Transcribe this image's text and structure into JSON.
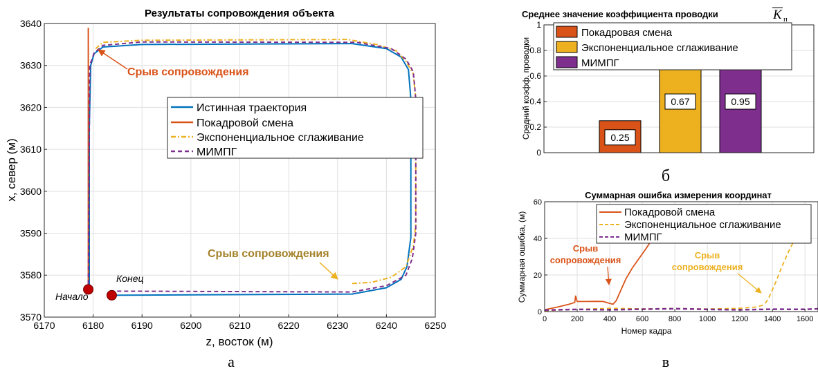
{
  "colors": {
    "true_traj": "#0072BD",
    "frame": "#D95319",
    "exp": "#EDB120",
    "mimpg": "#7E2F8E",
    "annot_red": "#D95319",
    "annot_olive": "#A4822A",
    "marker": "#C00000"
  },
  "chart_data": [
    {
      "type": "line",
      "panel_label": "а",
      "title": "Результаты сопровождения объекта",
      "xlabel": "z, восток (м)",
      "ylabel": "x, север (м)",
      "xlim": [
        6170,
        6250
      ],
      "ylim": [
        3570,
        3640
      ],
      "xticks": [
        "6170",
        "6180",
        "6190",
        "6200",
        "6210",
        "6220",
        "6230",
        "6240",
        "6250"
      ],
      "yticks": [
        "3570",
        "3580",
        "3590",
        "3600",
        "3610",
        "3620",
        "3630",
        "3640"
      ],
      "grid": true,
      "legend": [
        "Истинная траектория",
        "Покадровой смена",
        "Экспоненциальное сглаживание",
        "МИМПГ"
      ],
      "legend_position": "center-right",
      "annotations": [
        "Срыв сопровождения",
        "Срыв сопровождения",
        "Начало",
        "Конец"
      ],
      "series": [
        {
          "name": "Истинная траектория",
          "style": "solid",
          "x": [
            6183.5,
            6233,
            6240,
            6243,
            6244.2,
            6245,
            6245,
            6244.5,
            6243,
            6240,
            6233,
            6190,
            6182,
            6180.2,
            6179.5,
            6179.2,
            6179.2
          ],
          "y": [
            3575.2,
            3575.5,
            3577,
            3579,
            3582,
            3589,
            3622,
            3629,
            3632,
            3634,
            3635.2,
            3635,
            3634.4,
            3632.8,
            3630,
            3615,
            3577
          ]
        },
        {
          "name": "Покадровой смена",
          "style": "solid",
          "x": [
            6179,
            6179,
            6179
          ],
          "y": [
            3577,
            3610,
            3639
          ]
        },
        {
          "name": "Экспоненциальное сглаживание",
          "style": "dashdot",
          "x": [
            6233,
            6237,
            6241,
            6244,
            6245.5,
            6246,
            6246,
            6245.5,
            6244,
            6242,
            6238,
            6232,
            6190,
            6182,
            6180.5
          ],
          "y": [
            3578,
            3578.3,
            3579.5,
            3582,
            3587,
            3592,
            3622,
            3628,
            3631,
            3633.5,
            3635,
            3636.2,
            3636,
            3635.5,
            3634
          ]
        },
        {
          "name": "МИМПГ",
          "style": "dashed",
          "x": [
            6183.5,
            6233,
            6240,
            6244,
            6245.3,
            6246,
            6246,
            6245.5,
            6244,
            6241,
            6234,
            6190,
            6182,
            6180.2,
            6179.3,
            6179
          ],
          "y": [
            3576.2,
            3576,
            3577.5,
            3580,
            3584,
            3590,
            3622,
            3628.5,
            3631.5,
            3634,
            3635.5,
            3635.6,
            3634.8,
            3633,
            3630,
            3577
          ]
        }
      ],
      "markers": [
        {
          "label": "Начало",
          "x": 6179,
          "y": 3576.6
        },
        {
          "label": "Конец",
          "x": 6183.8,
          "y": 3575.2
        }
      ]
    },
    {
      "type": "bar",
      "panel_label": "б",
      "title": "Среднее значение коэффициента проводки",
      "title_symbol": "K",
      "title_subscript": "п",
      "xlabel": "",
      "ylabel": "Средний коэфф. проводки",
      "ylim": [
        0,
        1
      ],
      "yticks": [
        "0",
        "0.2",
        "0.4",
        "0.6",
        "0.8",
        "1"
      ],
      "grid": true,
      "legend_position": "top",
      "categories": [
        "Покадровая смена",
        "Экспоненциальное сглаживание",
        "МИМПГ"
      ],
      "values": [
        0.25,
        0.67,
        0.95
      ],
      "value_labels": [
        "0.25",
        "0.67",
        "0.95"
      ]
    },
    {
      "type": "line",
      "panel_label": "в",
      "title": "Суммарная ошибка измерения координат",
      "xlabel": "Номер кадра",
      "ylabel": "Суммарная ошибка, (м)",
      "xlim": [
        0,
        1680
      ],
      "ylim": [
        0,
        60
      ],
      "xticks": [
        "0",
        "200",
        "400",
        "600",
        "800",
        "1000",
        "1200",
        "1400",
        "1600"
      ],
      "yticks": [
        "0",
        "20",
        "40",
        "60"
      ],
      "grid": true,
      "legend": [
        "Покадровой смена",
        "Экспоненциальное сглаживание",
        "МИМПГ"
      ],
      "legend_position": "top-right",
      "annotations": [
        "Срыв сопровождения",
        "Срыв сопровождения"
      ],
      "series": [
        {
          "name": "Покадровой смена",
          "style": "solid",
          "x": [
            0,
            80,
            150,
            185,
            190,
            200,
            260,
            320,
            360,
            380,
            400,
            420,
            440,
            470,
            500,
            540,
            580,
            620,
            650,
            680
          ],
          "y": [
            1,
            2.5,
            4,
            5,
            8.5,
            5.5,
            5.5,
            5.6,
            5.5,
            5,
            4.5,
            4,
            6,
            12,
            18,
            24,
            29,
            34,
            38,
            41
          ]
        },
        {
          "name": "Экспоненциальное сглаживание",
          "style": "dashed",
          "x": [
            0,
            200,
            400,
            600,
            800,
            1000,
            1200,
            1300,
            1340,
            1360,
            1380,
            1420,
            1460,
            1500,
            1540,
            1600
          ],
          "y": [
            0.5,
            1.2,
            1.8,
            1.5,
            1.7,
            1.4,
            1.8,
            2.5,
            3.5,
            5,
            8,
            16,
            25,
            33,
            40,
            47
          ]
        },
        {
          "name": "МИМПГ",
          "style": "dashed",
          "x": [
            0,
            200,
            400,
            600,
            800,
            1000,
            1200,
            1400,
            1600,
            1680
          ],
          "y": [
            0.8,
            1.2,
            1.0,
            1.3,
            1.6,
            1.2,
            1.0,
            1.3,
            1.2,
            1.5
          ]
        }
      ]
    }
  ]
}
